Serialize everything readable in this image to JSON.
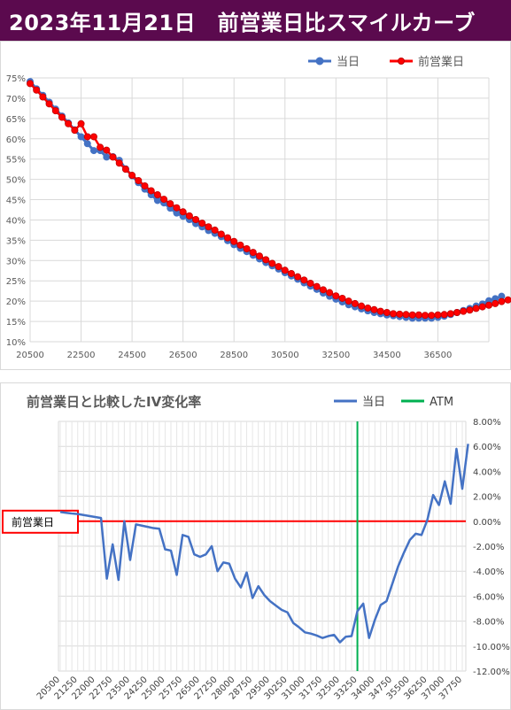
{
  "header": {
    "title": "2023年11月21日　前営業日比スマイルカーブ"
  },
  "chart_data": [
    {
      "type": "line",
      "legend": {
        "placement": "top-right",
        "entries": [
          "当日",
          "前営業日"
        ]
      },
      "colors": {
        "当日": "#4472c4",
        "前営業日": "#ff0000",
        "前営業日_border": "#c00000"
      },
      "grid": true,
      "xlim": [
        20500,
        38500
      ],
      "ylim": [
        0.1,
        0.75
      ],
      "x_ticks": [
        20500,
        22500,
        24500,
        26500,
        28500,
        30500,
        32500,
        34500,
        36500
      ],
      "y_ticks": [
        0.1,
        0.15,
        0.2,
        0.25,
        0.3,
        0.35,
        0.4,
        0.45,
        0.5,
        0.55,
        0.6,
        0.65,
        0.7,
        0.75
      ],
      "y_tick_labels": [
        "10%",
        "15%",
        "20%",
        "25%",
        "30%",
        "35%",
        "40%",
        "45%",
        "50%",
        "55%",
        "60%",
        "65%",
        "70%",
        "75%"
      ],
      "series": [
        {
          "name": "当日",
          "x_start": 20500,
          "x_step": 250,
          "values": [
            0.741,
            0.723,
            0.707,
            0.69,
            0.673,
            0.656,
            0.639,
            0.622,
            0.605,
            0.588,
            0.571,
            0.571,
            0.555,
            0.556,
            0.547,
            0.526,
            0.509,
            0.492,
            0.476,
            0.462,
            0.448,
            0.442,
            0.429,
            0.417,
            0.409,
            0.401,
            0.391,
            0.383,
            0.374,
            0.367,
            0.359,
            0.349,
            0.339,
            0.33,
            0.322,
            0.313,
            0.304,
            0.295,
            0.287,
            0.279,
            0.27,
            0.262,
            0.254,
            0.245,
            0.237,
            0.229,
            0.22,
            0.212,
            0.205,
            0.198,
            0.191,
            0.186,
            0.181,
            0.176,
            0.172,
            0.169,
            0.166,
            0.164,
            0.162,
            0.16,
            0.158,
            0.158,
            0.158,
            0.158,
            0.16,
            0.163,
            0.167,
            0.172,
            0.177,
            0.182,
            0.188,
            0.193,
            0.201,
            0.206,
            0.212
          ]
        },
        {
          "name": "前営業日",
          "x_start": 20500,
          "x_step": 250,
          "values": [
            0.736,
            0.72,
            0.703,
            0.686,
            0.669,
            0.653,
            0.637,
            0.621,
            0.637,
            0.605,
            0.605,
            0.579,
            0.572,
            0.555,
            0.54,
            0.525,
            0.51,
            0.497,
            0.484,
            0.472,
            0.462,
            0.451,
            0.44,
            0.43,
            0.42,
            0.41,
            0.401,
            0.392,
            0.383,
            0.375,
            0.365,
            0.356,
            0.347,
            0.338,
            0.329,
            0.32,
            0.311,
            0.302,
            0.293,
            0.285,
            0.276,
            0.268,
            0.26,
            0.252,
            0.244,
            0.236,
            0.228,
            0.221,
            0.213,
            0.207,
            0.2,
            0.194,
            0.188,
            0.183,
            0.179,
            0.175,
            0.172,
            0.169,
            0.168,
            0.167,
            0.166,
            0.166,
            0.165,
            0.165,
            0.166,
            0.167,
            0.169,
            0.172,
            0.175,
            0.178,
            0.182,
            0.186,
            0.19,
            0.194,
            0.199,
            0.203
          ]
        }
      ]
    },
    {
      "type": "line",
      "title": "前営業日と比較したIV変化率",
      "legend": {
        "placement": "top-right",
        "entries": [
          "当日",
          "ATM"
        ]
      },
      "colors": {
        "当日": "#4472c4",
        "ATM": "#00b050",
        "baseline": "#ff0000"
      },
      "baseline_label": "前営業日",
      "atm_x": 33250,
      "grid": true,
      "ylim": [
        -0.12,
        0.08
      ],
      "y_ticks": [
        0.08,
        0.06,
        0.04,
        0.02,
        0.0,
        -0.02,
        -0.04,
        -0.06,
        -0.08,
        -0.1,
        -0.12
      ],
      "y_tick_labels": [
        "8.00%",
        "6.00%",
        "4.00%",
        "2.00%",
        "0.00%",
        "-2.00%",
        "-4.00%",
        "-6.00%",
        "-8.00%",
        "-10.00%",
        "-12.00%"
      ],
      "x_ticks": [
        20500,
        21250,
        22000,
        22750,
        23500,
        24250,
        25000,
        25750,
        26500,
        27250,
        28000,
        28750,
        29500,
        30250,
        31000,
        31750,
        32500,
        33250,
        34000,
        34750,
        35500,
        36250,
        37000,
        37750
      ],
      "series": [
        {
          "name": "当日",
          "x_start": 20500,
          "x_step": 250,
          "values": [
            0.0075,
            0.0068,
            0.0062,
            0.0058,
            0.005,
            0.0042,
            0.0034,
            0.0026,
            -0.046,
            -0.0185,
            -0.047,
            0.0,
            -0.031,
            -0.0025,
            -0.0035,
            -0.0045,
            -0.0055,
            -0.006,
            -0.0225,
            -0.0235,
            -0.043,
            -0.011,
            -0.0125,
            -0.0265,
            -0.0285,
            -0.0265,
            -0.02,
            -0.04,
            -0.033,
            -0.034,
            -0.046,
            -0.053,
            -0.041,
            -0.0615,
            -0.052,
            -0.059,
            -0.064,
            -0.0675,
            -0.071,
            -0.073,
            -0.0815,
            -0.085,
            -0.089,
            -0.09,
            -0.0915,
            -0.0935,
            -0.092,
            -0.091,
            -0.097,
            -0.0925,
            -0.092,
            -0.072,
            -0.066,
            -0.0935,
            -0.079,
            -0.067,
            -0.064,
            -0.05,
            -0.036,
            -0.025,
            -0.015,
            -0.01,
            -0.011,
            0.001,
            0.021,
            0.013,
            0.032,
            0.014,
            0.058,
            0.026,
            0.062
          ]
        }
      ]
    }
  ]
}
